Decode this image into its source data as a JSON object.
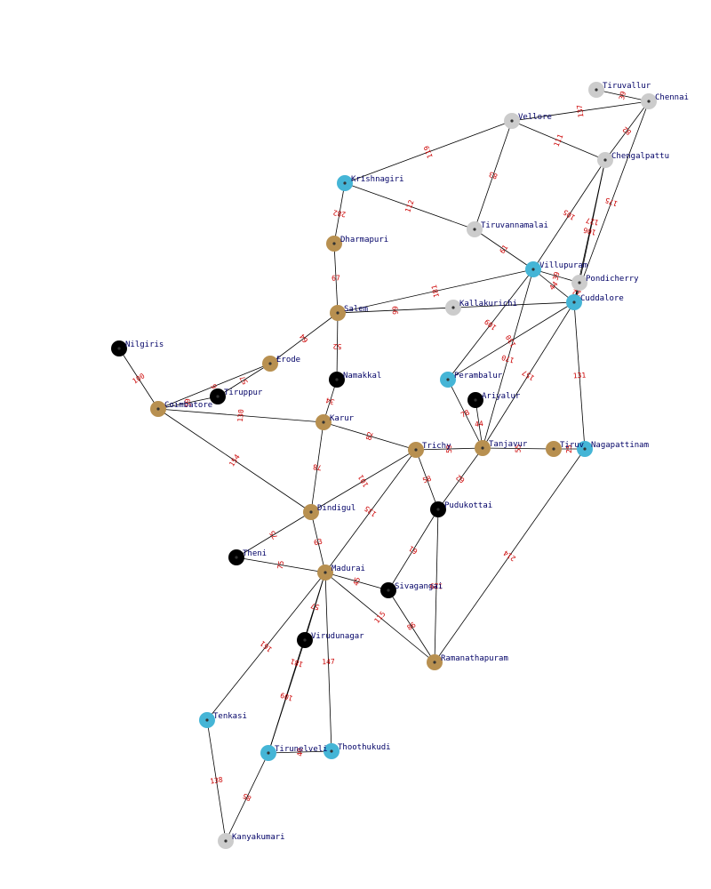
{
  "colors": {
    "edge": "#000000",
    "edge_label": "#cc0000",
    "node_label": "#000066",
    "group": {
      "gray": "#cccccc",
      "blue": "#45b5d6",
      "tan": "#b89050",
      "black": "#000000"
    }
  },
  "nodes": [
    {
      "id": "Tiruvallur",
      "label": "Tiruvallur",
      "group": "gray"
    },
    {
      "id": "Chennai",
      "label": "Chennai",
      "group": "gray"
    },
    {
      "id": "Vellore",
      "label": "Vellore",
      "group": "gray"
    },
    {
      "id": "Chengalpattu",
      "label": "Chengalpattu",
      "group": "gray"
    },
    {
      "id": "Krishnagiri",
      "label": "Krishnagiri",
      "group": "blue"
    },
    {
      "id": "Tiruvannamalai",
      "label": "Tiruvannamalai",
      "group": "gray"
    },
    {
      "id": "Dharmapuri",
      "label": "Dharmapuri",
      "group": "tan"
    },
    {
      "id": "Villupuram",
      "label": "Villupuram",
      "group": "blue"
    },
    {
      "id": "Pondicherry",
      "label": "Pondicherry",
      "group": "gray"
    },
    {
      "id": "Cuddalore",
      "label": "Cuddalore",
      "group": "blue"
    },
    {
      "id": "Salem",
      "label": "Salem",
      "group": "tan"
    },
    {
      "id": "Kallakurichi",
      "label": "Kallakurichi",
      "group": "gray"
    },
    {
      "id": "Nilgiris",
      "label": "Nilgiris",
      "group": "black"
    },
    {
      "id": "Erode",
      "label": "Erode",
      "group": "tan"
    },
    {
      "id": "Namakkal",
      "label": "Namakkal",
      "group": "black"
    },
    {
      "id": "Perambalur",
      "label": "Perambalur",
      "group": "blue"
    },
    {
      "id": "Ariyalur",
      "label": "Ariyalur",
      "group": "black"
    },
    {
      "id": "Tiruppur",
      "label": "Tiruppur",
      "group": "black"
    },
    {
      "id": "Coimbatore",
      "label": "Coimbatore",
      "group": "tan"
    },
    {
      "id": "Karur",
      "label": "Karur",
      "group": "tan"
    },
    {
      "id": "Trichy",
      "label": "Trichy",
      "group": "tan"
    },
    {
      "id": "Tanjavur",
      "label": "Tanjavur",
      "group": "tan"
    },
    {
      "id": "Tiruvarur",
      "label": "Tiruv",
      "group": "tan"
    },
    {
      "id": "Nagapattinam",
      "label": "Nagapattinam",
      "group": "blue"
    },
    {
      "id": "Pudukottai",
      "label": "Pudukottai",
      "group": "black"
    },
    {
      "id": "Dindigul",
      "label": "Dindigul",
      "group": "tan"
    },
    {
      "id": "Theni",
      "label": "Theni",
      "group": "black"
    },
    {
      "id": "Madurai",
      "label": "Madurai",
      "group": "tan"
    },
    {
      "id": "Sivagangai",
      "label": "Sivagangai",
      "group": "black"
    },
    {
      "id": "Virudunagar",
      "label": "Virudunagar",
      "group": "black"
    },
    {
      "id": "Ramanathapuram",
      "label": "Ramanathapuram",
      "group": "tan"
    },
    {
      "id": "Tenkasi",
      "label": "Tenkasi",
      "group": "blue"
    },
    {
      "id": "Tirunelveli",
      "label": "Tirunelveli",
      "group": "blue"
    },
    {
      "id": "Thoothukudi",
      "label": "Thoothukudi",
      "group": "blue"
    },
    {
      "id": "Kanyakumari",
      "label": "Kanyakumari",
      "group": "gray"
    }
  ],
  "edges": [
    {
      "from": "Tiruvallur",
      "to": "Chennai",
      "weight": "39"
    },
    {
      "from": "Vellore",
      "to": "Chennai",
      "weight": "137"
    },
    {
      "from": "Chengalpattu",
      "to": "Chennai",
      "weight": "82"
    },
    {
      "from": "Vellore",
      "to": "Chengalpattu",
      "weight": "111"
    },
    {
      "from": "Vellore",
      "to": "Krishnagiri",
      "weight": "119"
    },
    {
      "from": "Vellore",
      "to": "Tiruvannamalai",
      "weight": "83"
    },
    {
      "from": "Krishnagiri",
      "to": "Tiruvannamalai",
      "weight": "112"
    },
    {
      "from": "Krishnagiri",
      "to": "Dharmapuri",
      "weight": "282"
    },
    {
      "from": "Tiruvannamalai",
      "to": "Villupuram",
      "weight": "61"
    },
    {
      "from": "Chengalpattu",
      "to": "Villupuram",
      "weight": "105"
    },
    {
      "from": "Chengalpattu",
      "to": "Pondicherry",
      "weight": "127"
    },
    {
      "from": "Chengalpattu",
      "to": "Cuddalore",
      "weight": "106"
    },
    {
      "from": "Chennai",
      "to": "Cuddalore",
      "weight": "175"
    },
    {
      "from": "Villupuram",
      "to": "Pondicherry",
      "weight": "39"
    },
    {
      "from": "Villupuram",
      "to": "Cuddalore",
      "weight": "44"
    },
    {
      "from": "Pondicherry",
      "to": "Cuddalore",
      "weight": "22"
    },
    {
      "from": "Dharmapuri",
      "to": "Salem",
      "weight": "67"
    },
    {
      "from": "Salem",
      "to": "Villupuram",
      "weight": "181"
    },
    {
      "from": "Salem",
      "to": "Kallakurichi",
      "weight": "99"
    },
    {
      "from": "Kallakurichi",
      "to": "Cuddalore",
      "weight": ""
    },
    {
      "from": "Salem",
      "to": "Erode",
      "weight": "64"
    },
    {
      "from": "Salem",
      "to": "Namakkal",
      "weight": "52"
    },
    {
      "from": "Villupuram",
      "to": "Perambalur",
      "weight": "109"
    },
    {
      "from": "Villupuram",
      "to": "Tanjavur",
      "weight": "170"
    },
    {
      "from": "Cuddalore",
      "to": "Perambalur",
      "weight": "130"
    },
    {
      "from": "Cuddalore",
      "to": "Tanjavur",
      "weight": "157"
    },
    {
      "from": "Cuddalore",
      "to": "Nagapattinam",
      "weight": "131"
    },
    {
      "from": "Nilgiris",
      "to": "Coimbatore",
      "weight": "100"
    },
    {
      "from": "Erode",
      "to": "Tiruppur",
      "weight": "57"
    },
    {
      "from": "Erode",
      "to": "Coimbatore",
      "weight": "6"
    },
    {
      "from": "Coimbatore",
      "to": "Tiruppur",
      "weight": "59"
    },
    {
      "from": "Namakkal",
      "to": "Karur",
      "weight": "34"
    },
    {
      "from": "Coimbatore",
      "to": "Karur",
      "weight": "130"
    },
    {
      "from": "Coimbatore",
      "to": "Dindigul",
      "weight": "154"
    },
    {
      "from": "Perambalur",
      "to": "Tanjavur",
      "weight": "78"
    },
    {
      "from": "Ariyalur",
      "to": "Tanjavur",
      "weight": "44"
    },
    {
      "from": "Karur",
      "to": "Trichy",
      "weight": "82"
    },
    {
      "from": "Karur",
      "to": "Dindigul",
      "weight": "78"
    },
    {
      "from": "Trichy",
      "to": "Tanjavur",
      "weight": "59"
    },
    {
      "from": "Tanjavur",
      "to": "Tiruvarur",
      "weight": "55"
    },
    {
      "from": "Tiruvarur",
      "to": "Nagapattinam",
      "weight": "25"
    },
    {
      "from": "Trichy",
      "to": "Pudukottai",
      "weight": "58"
    },
    {
      "from": "Tanjavur",
      "to": "Pudukottai",
      "weight": "62"
    },
    {
      "from": "Trichy",
      "to": "Dindigul",
      "weight": "101"
    },
    {
      "from": "Trichy",
      "to": "Madurai",
      "weight": "135"
    },
    {
      "from": "Dindigul",
      "to": "Theni",
      "weight": "75"
    },
    {
      "from": "Dindigul",
      "to": "Madurai",
      "weight": "63"
    },
    {
      "from": "Theni",
      "to": "Madurai",
      "weight": "75"
    },
    {
      "from": "Pudukottai",
      "to": "Sivagangai",
      "weight": "61"
    },
    {
      "from": "Pudukottai",
      "to": "Ramanathapuram",
      "weight": "129"
    },
    {
      "from": "Nagapattinam",
      "to": "Ramanathapuram",
      "weight": "214"
    },
    {
      "from": "Madurai",
      "to": "Sivagangai",
      "weight": "45"
    },
    {
      "from": "Madurai",
      "to": "Ramanathapuram",
      "weight": "115"
    },
    {
      "from": "Sivagangai",
      "to": "Ramanathapuram",
      "weight": "86"
    },
    {
      "from": "Madurai",
      "to": "Virudunagar",
      "weight": "57"
    },
    {
      "from": "Madurai",
      "to": "Tenkasi",
      "weight": "161"
    },
    {
      "from": "Madurai",
      "to": "Tirunelveli",
      "weight": "181"
    },
    {
      "from": "Madurai",
      "to": "Thoothukudi",
      "weight": "147"
    },
    {
      "from": "Virudunagar",
      "to": "Tirunelveli",
      "weight": "109"
    },
    {
      "from": "Tirunelveli",
      "to": "Thoothukudi",
      "weight": "40"
    },
    {
      "from": "Tenkasi",
      "to": "Kanyakumari",
      "weight": "138"
    },
    {
      "from": "Tirunelveli",
      "to": "Kanyakumari",
      "weight": "85"
    }
  ]
}
